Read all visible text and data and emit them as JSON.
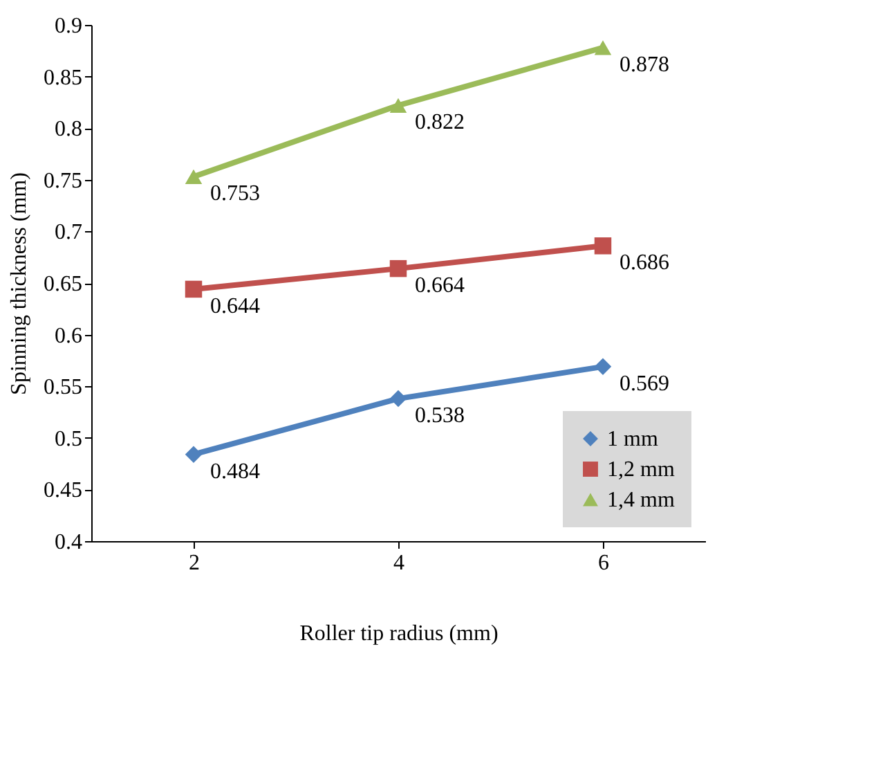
{
  "chart_data": {
    "type": "line",
    "xlabel": "Roller tip radius (mm)",
    "ylabel": "Spinning thickness  (mm)",
    "categories": [
      "2",
      "4",
      "6"
    ],
    "series": [
      {
        "name": "1 mm",
        "color": "#4f81bd",
        "marker": "diamond",
        "values": [
          0.484,
          0.538,
          0.569
        ]
      },
      {
        "name": "1,2 mm",
        "color": "#c0504d",
        "marker": "square",
        "values": [
          0.644,
          0.664,
          0.686
        ]
      },
      {
        "name": "1,4 mm",
        "color": "#9bbb59",
        "marker": "triangle",
        "values": [
          0.753,
          0.822,
          0.878
        ]
      }
    ],
    "ylim": [
      0.4,
      0.9
    ],
    "yticks": [
      0.4,
      0.45,
      0.5,
      0.55,
      0.6,
      0.65,
      0.7,
      0.75,
      0.8,
      0.85,
      0.9
    ],
    "data_labels": true,
    "grid": false,
    "legend": "bottom right",
    "line_style": "solid"
  }
}
